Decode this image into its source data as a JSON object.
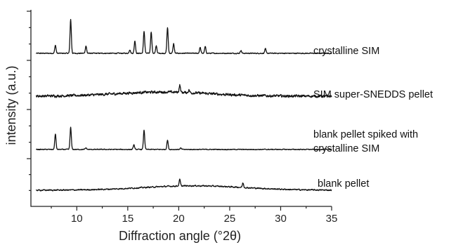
{
  "chart_data": {
    "type": "line",
    "title": "",
    "xlabel": "Diffraction angle (°2θ)",
    "ylabel": "intensity (a.u.)",
    "xlim": [
      5.5,
      35
    ],
    "x_ticks": [
      10,
      15,
      20,
      25,
      30,
      35
    ],
    "y_tick_labels": "none",
    "grid": false,
    "series": [
      {
        "name": "crystalline SIM",
        "baseline": 0.48,
        "noise": 0.05,
        "peaks": [
          {
            "x": 7.9,
            "h": 0.55
          },
          {
            "x": 9.4,
            "h": 2.3
          },
          {
            "x": 10.9,
            "h": 0.5
          },
          {
            "x": 15.2,
            "h": 0.25
          },
          {
            "x": 15.7,
            "h": 0.85
          },
          {
            "x": 16.6,
            "h": 1.5
          },
          {
            "x": 17.3,
            "h": 1.45
          },
          {
            "x": 17.8,
            "h": 0.5
          },
          {
            "x": 18.9,
            "h": 1.75
          },
          {
            "x": 19.5,
            "h": 0.65
          },
          {
            "x": 22.1,
            "h": 0.4
          },
          {
            "x": 22.6,
            "h": 0.45
          },
          {
            "x": 26.1,
            "h": 0.2
          },
          {
            "x": 28.5,
            "h": 0.3
          }
        ]
      },
      {
        "name": "SIM super-SNEDDS pellet",
        "baseline": 1.0,
        "noise": 0.22,
        "hump": {
          "x": 18.5,
          "h": 0.45,
          "w": 6.5
        },
        "peaks": [
          {
            "x": 20.1,
            "h": 0.8
          },
          {
            "x": 21.0,
            "h": 0.3
          }
        ]
      },
      {
        "name": "blank pellet spiked with crystalline SIM",
        "baseline": 0.48,
        "noise": 0.05,
        "peaks": [
          {
            "x": 7.9,
            "h": 1.15
          },
          {
            "x": 9.4,
            "h": 1.65
          },
          {
            "x": 10.9,
            "h": 0.12
          },
          {
            "x": 15.6,
            "h": 0.35
          },
          {
            "x": 16.6,
            "h": 1.45
          },
          {
            "x": 18.9,
            "h": 0.7
          },
          {
            "x": 20.2,
            "h": 0.1
          }
        ]
      },
      {
        "name": "blank pellet",
        "baseline": 0.28,
        "noise": 0.08,
        "hump": {
          "x": 21.5,
          "h": 0.35,
          "w": 7.0
        },
        "peaks": [
          {
            "x": 20.1,
            "h": 0.5
          },
          {
            "x": 26.3,
            "h": 0.35
          }
        ]
      }
    ]
  }
}
